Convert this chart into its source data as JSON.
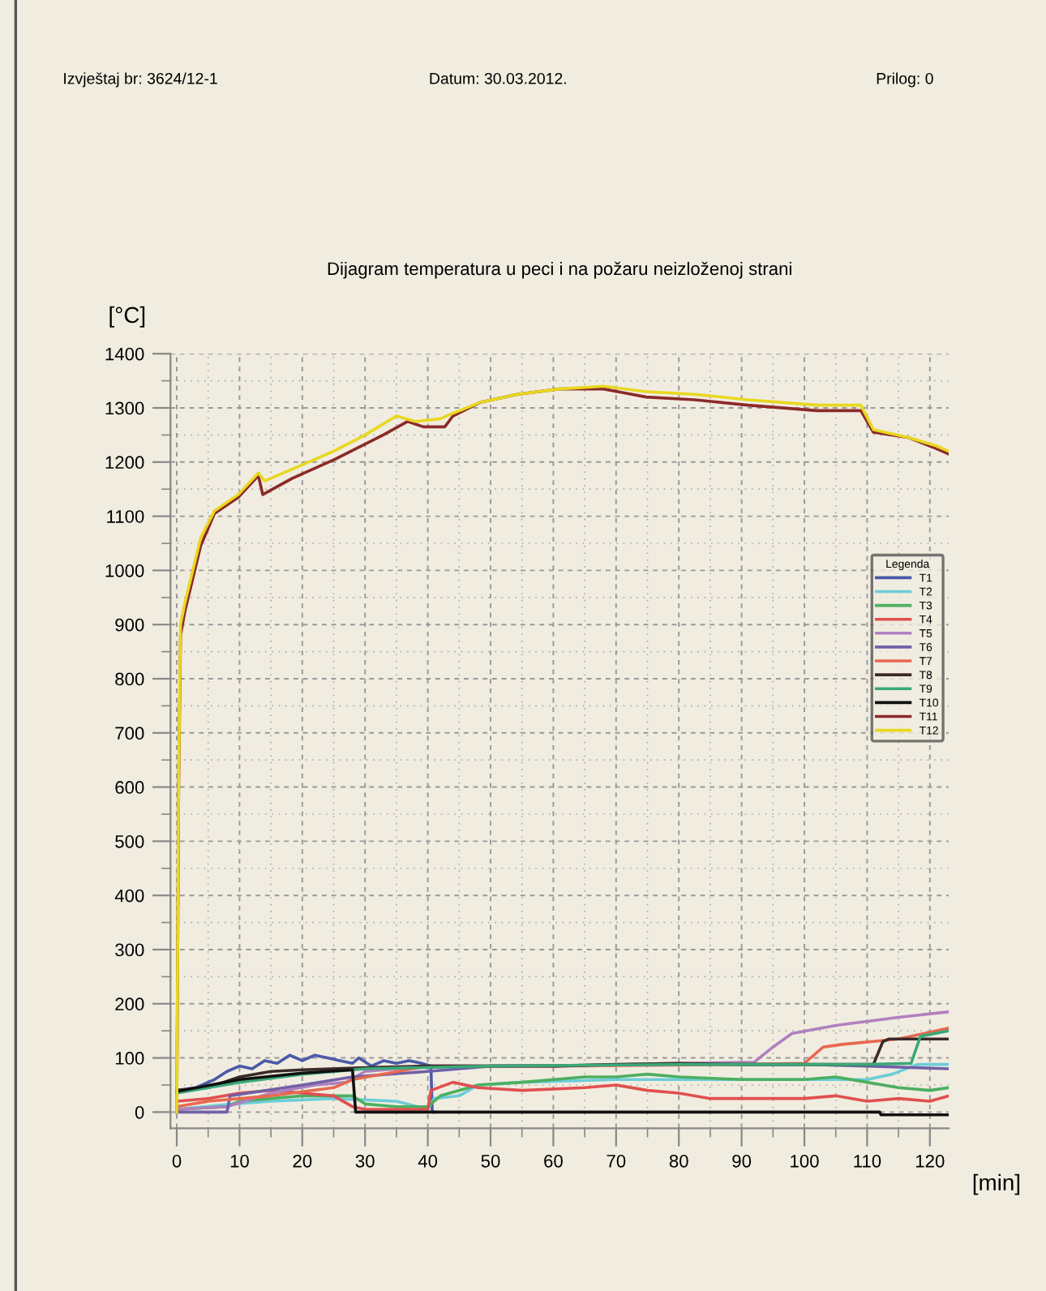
{
  "chart_data": {
    "type": "line",
    "title": "Dijagram temperatura u peci i na požaru neizloženoj strani",
    "xlabel": "[min]",
    "ylabel": "[°C]",
    "legend_title": "Legenda",
    "legend": "right",
    "grid": true,
    "marker": "none",
    "line_style": "solid",
    "annotations": [
      "Izvještaj br: 3624/12-1",
      "Datum: 30.03.2012.",
      "Prilog: 0"
    ],
    "xlim": [
      -1,
      123
    ],
    "ylim": [
      -30,
      1400
    ],
    "xticks": [
      0,
      10,
      20,
      30,
      40,
      50,
      60,
      70,
      80,
      90,
      100,
      110,
      120
    ],
    "yticks": [
      0,
      100,
      200,
      300,
      400,
      500,
      600,
      700,
      800,
      900,
      1000,
      1100,
      1200,
      1300,
      1400
    ],
    "series": [
      {
        "name": "T1",
        "color": "#4a5aa8",
        "x": [
          0,
          3,
          6,
          8,
          10,
          12,
          14,
          16,
          18,
          20,
          22,
          24,
          26,
          28,
          29,
          31,
          33,
          35,
          37,
          39,
          40.5,
          40.7,
          41
        ],
        "values": [
          40,
          45,
          60,
          75,
          85,
          80,
          95,
          90,
          105,
          95,
          105,
          100,
          95,
          90,
          100,
          85,
          95,
          90,
          95,
          90,
          85,
          0,
          0
        ]
      },
      {
        "name": "T2",
        "color": "#6ccdd8",
        "x": [
          0,
          9,
          15,
          25,
          35,
          40,
          41,
          45,
          48,
          55,
          70,
          80,
          90,
          100,
          110,
          114,
          118,
          123
        ],
        "values": [
          5,
          15,
          20,
          25,
          20,
          5,
          25,
          30,
          50,
          55,
          60,
          60,
          60,
          60,
          60,
          70,
          88,
          88
        ]
      },
      {
        "name": "T3",
        "color": "#4caf60",
        "x": [
          0,
          8,
          10,
          15,
          20,
          28,
          30,
          35,
          40,
          42,
          48,
          55,
          65,
          70,
          75,
          80,
          90,
          100,
          105,
          110,
          115,
          120,
          123
        ],
        "values": [
          5,
          10,
          20,
          25,
          30,
          30,
          15,
          10,
          10,
          30,
          50,
          55,
          65,
          65,
          70,
          65,
          60,
          60,
          65,
          55,
          45,
          40,
          45
        ]
      },
      {
        "name": "T4",
        "color": "#e05050",
        "x": [
          0,
          5,
          10,
          15,
          20,
          25,
          28,
          30,
          35,
          40,
          40.5,
          44,
          48,
          55,
          65,
          70,
          75,
          80,
          85,
          90,
          100,
          105,
          110,
          115,
          120,
          123
        ],
        "values": [
          20,
          25,
          35,
          40,
          35,
          30,
          10,
          5,
          5,
          5,
          40,
          55,
          45,
          40,
          45,
          50,
          40,
          35,
          25,
          25,
          25,
          30,
          20,
          25,
          20,
          30
        ]
      },
      {
        "name": "T5",
        "color": "#b080c0",
        "x": [
          0,
          8,
          15,
          22,
          27,
          30,
          40,
          60,
          80,
          92,
          95,
          98,
          105,
          115,
          123
        ],
        "values": [
          5,
          10,
          35,
          50,
          55,
          75,
          85,
          85,
          90,
          92,
          120,
          145,
          160,
          175,
          185
        ]
      },
      {
        "name": "T6",
        "color": "#7060a8",
        "x": [
          0,
          8,
          8.5,
          20,
          28,
          40,
          50,
          80,
          100,
          110,
          123
        ],
        "values": [
          0,
          0,
          30,
          50,
          65,
          75,
          85,
          88,
          88,
          85,
          80
        ]
      },
      {
        "name": "T7",
        "color": "#e86850",
        "x": [
          0,
          5,
          15,
          25,
          28,
          40,
          60,
          90,
          100,
          103,
          106,
          115,
          123
        ],
        "values": [
          10,
          20,
          30,
          45,
          60,
          85,
          85,
          88,
          90,
          120,
          125,
          135,
          155
        ]
      },
      {
        "name": "T8",
        "color": "#3a2a28",
        "x": [
          0,
          5,
          10,
          15,
          20,
          30,
          40,
          60,
          70,
          80,
          90,
          100,
          111,
          112.5,
          113.5,
          123
        ],
        "values": [
          40,
          45,
          65,
          75,
          78,
          82,
          85,
          85,
          88,
          90,
          88,
          88,
          88,
          130,
          135,
          135
        ]
      },
      {
        "name": "T9",
        "color": "#3aa878",
        "x": [
          0,
          10,
          20,
          30,
          50,
          80,
          110,
          117,
          118.5,
          123
        ],
        "values": [
          35,
          55,
          70,
          80,
          85,
          88,
          88,
          90,
          140,
          150
        ]
      },
      {
        "name": "T10",
        "color": "#101010",
        "x": [
          0,
          10,
          20,
          28,
          28.5,
          112,
          112.2,
          123
        ],
        "values": [
          38,
          60,
          72,
          78,
          0,
          0,
          -5,
          -5
        ]
      },
      {
        "name": "T11",
        "color": "#8b2a28",
        "x": [
          0,
          0.3,
          0.6,
          1.3,
          3.8,
          6,
          9.8,
          13,
          13.7,
          18.4,
          25.2,
          32.9,
          36.8,
          39.3,
          42.7,
          44,
          48.3,
          54.3,
          61,
          68,
          74.8,
          82.5,
          91,
          102,
          109,
          111,
          116.7,
          121,
          123
        ],
        "values": [
          0,
          600,
          880,
          925,
          1045,
          1105,
          1135,
          1175,
          1140,
          1170,
          1205,
          1250,
          1275,
          1265,
          1265,
          1285,
          1310,
          1325,
          1335,
          1335,
          1320,
          1315,
          1305,
          1295,
          1295,
          1255,
          1245,
          1225,
          1215
        ]
      },
      {
        "name": "T12",
        "color": "#e8d820",
        "x": [
          0,
          0.3,
          0.6,
          1.3,
          3.8,
          6,
          9.8,
          13,
          14,
          20,
          25,
          30,
          35,
          38,
          42,
          44,
          48.3,
          54.3,
          61,
          68,
          74.8,
          82.5,
          91,
          102,
          109,
          111,
          116.7,
          121,
          123
        ],
        "values": [
          0,
          620,
          900,
          940,
          1060,
          1110,
          1140,
          1180,
          1165,
          1195,
          1220,
          1250,
          1285,
          1275,
          1280,
          1290,
          1310,
          1325,
          1335,
          1340,
          1330,
          1325,
          1315,
          1305,
          1305,
          1260,
          1245,
          1230,
          1220
        ]
      }
    ]
  }
}
